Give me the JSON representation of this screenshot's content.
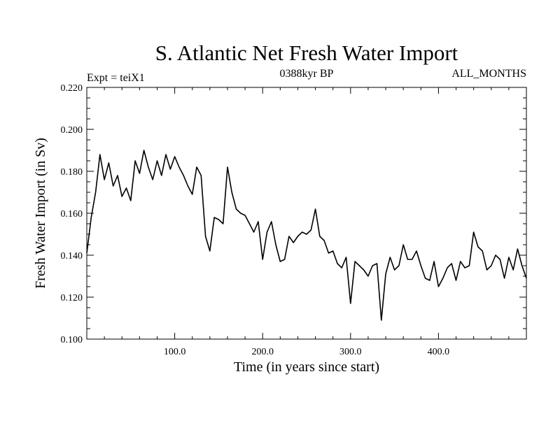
{
  "chart_data": {
    "type": "line",
    "title": "S. Atlantic Net Fresh Water Import",
    "left_label": "Expt = teiX1",
    "center_label": "0388kyr BP",
    "right_label": "ALL_MONTHS",
    "xlabel": "Time (in years since start)",
    "ylabel": "Fresh Water Import (in Sv)",
    "xlim": [
      0,
      500
    ],
    "ylim": [
      0.1,
      0.22
    ],
    "xticks": [
      100,
      200,
      300,
      400
    ],
    "xtick_labels": [
      "100.0",
      "200.0",
      "300.0",
      "400.0"
    ],
    "yticks": [
      0.1,
      0.12,
      0.14,
      0.16,
      0.18,
      0.2,
      0.22
    ],
    "ytick_labels": [
      "0.100",
      "0.120",
      "0.140",
      "0.160",
      "0.180",
      "0.200",
      "0.220"
    ],
    "grid": false,
    "line_color": "#000000",
    "x": [
      0,
      5,
      10,
      15,
      20,
      25,
      30,
      35,
      40,
      45,
      50,
      55,
      60,
      65,
      70,
      75,
      80,
      85,
      90,
      95,
      100,
      105,
      110,
      115,
      120,
      125,
      130,
      135,
      140,
      145,
      150,
      155,
      160,
      165,
      170,
      175,
      180,
      185,
      190,
      195,
      200,
      205,
      210,
      215,
      220,
      225,
      230,
      235,
      240,
      245,
      250,
      255,
      260,
      265,
      270,
      275,
      280,
      285,
      290,
      295,
      300,
      305,
      310,
      315,
      320,
      325,
      330,
      335,
      340,
      345,
      350,
      355,
      360,
      365,
      370,
      375,
      380,
      385,
      390,
      395,
      400,
      405,
      410,
      415,
      420,
      425,
      430,
      435,
      440,
      445,
      450,
      455,
      460,
      465,
      470,
      475,
      480,
      485,
      490,
      495,
      500
    ],
    "y": [
      0.141,
      0.158,
      0.17,
      0.188,
      0.176,
      0.184,
      0.173,
      0.178,
      0.168,
      0.172,
      0.166,
      0.185,
      0.179,
      0.19,
      0.182,
      0.176,
      0.185,
      0.178,
      0.188,
      0.181,
      0.187,
      0.182,
      0.178,
      0.173,
      0.169,
      0.182,
      0.178,
      0.149,
      0.142,
      0.158,
      0.157,
      0.155,
      0.182,
      0.17,
      0.162,
      0.16,
      0.159,
      0.155,
      0.151,
      0.156,
      0.138,
      0.151,
      0.156,
      0.145,
      0.137,
      0.138,
      0.149,
      0.146,
      0.149,
      0.151,
      0.15,
      0.152,
      0.162,
      0.149,
      0.147,
      0.141,
      0.142,
      0.136,
      0.134,
      0.139,
      0.117,
      0.137,
      0.135,
      0.133,
      0.13,
      0.135,
      0.136,
      0.109,
      0.131,
      0.139,
      0.133,
      0.135,
      0.145,
      0.138,
      0.138,
      0.142,
      0.135,
      0.129,
      0.128,
      0.137,
      0.125,
      0.129,
      0.134,
      0.136,
      0.128,
      0.137,
      0.134,
      0.135,
      0.151,
      0.144,
      0.142,
      0.133,
      0.135,
      0.14,
      0.138,
      0.129,
      0.139,
      0.133,
      0.143,
      0.135,
      0.129
    ]
  }
}
